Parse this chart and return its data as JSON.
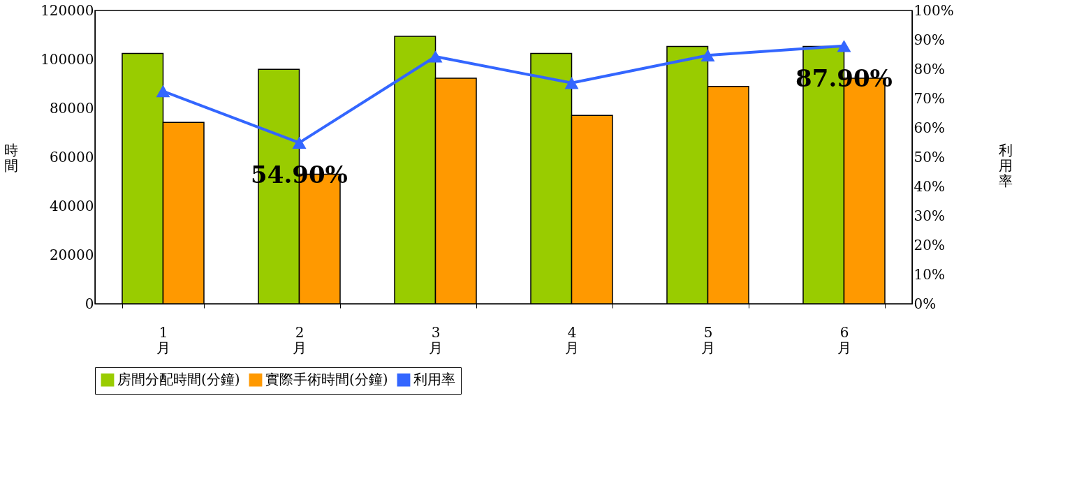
{
  "chart_data": {
    "type": "bar",
    "categories": [
      "1月",
      "2月",
      "3月",
      "4月",
      "5月",
      "6月"
    ],
    "ylabel": "時間",
    "y2label": "利用率",
    "ylim": [
      0,
      120000
    ],
    "yticks": [
      0,
      20000,
      40000,
      60000,
      80000,
      100000,
      120000
    ],
    "y2lim": [
      0,
      100
    ],
    "y2ticks": [
      {
        "value": 0,
        "label": "0%"
      },
      {
        "value": 10,
        "label": "10%"
      },
      {
        "value": 20,
        "label": "20%"
      },
      {
        "value": 30,
        "label": "30%"
      },
      {
        "value": 40,
        "label": "40%"
      },
      {
        "value": 50,
        "label": "50%"
      },
      {
        "value": 60,
        "label": "60%"
      },
      {
        "value": 70,
        "label": "70%"
      },
      {
        "value": 80,
        "label": "80%"
      },
      {
        "value": 90,
        "label": "90%"
      },
      {
        "value": 100,
        "label": "100%"
      }
    ],
    "series": [
      {
        "name": "房間分配時間(分鐘)",
        "color": "#99cc00",
        "values": [
          102400,
          95900,
          109400,
          102400,
          105300,
          105300
        ]
      },
      {
        "name": "實際手術時間(分鐘)",
        "color": "#ff9900",
        "values": [
          74200,
          53000,
          92300,
          77100,
          88900,
          92300
        ]
      },
      {
        "name": "利用率",
        "type": "line",
        "axis": "y2",
        "color": "#3366ff",
        "marker": "triangle",
        "values": [
          72.5,
          54.9,
          84.3,
          75.3,
          84.7,
          87.9
        ],
        "value_labels": [
          null,
          "54.90%",
          null,
          null,
          null,
          "87.90%"
        ]
      }
    ],
    "grid": false,
    "legend": "bottom"
  }
}
